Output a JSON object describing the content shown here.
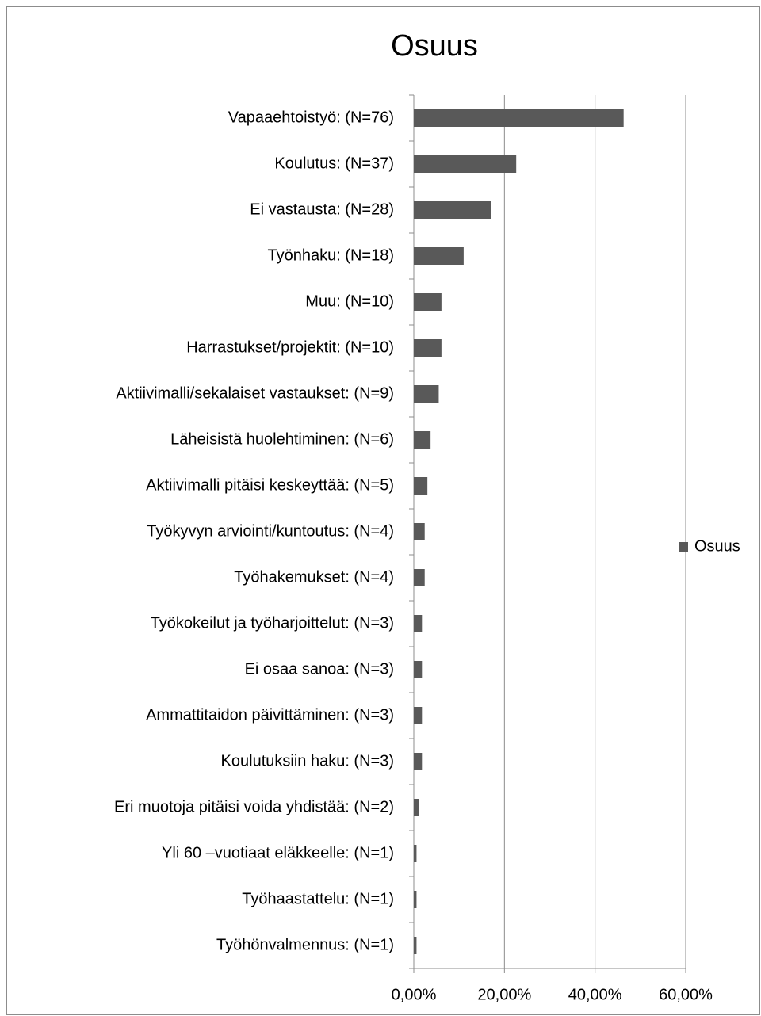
{
  "chart_data": {
    "type": "bar",
    "orientation": "horizontal",
    "title": "Osuus",
    "categories": [
      "Vapaaehtoistyö:  (N=76)",
      "Koulutus: (N=37)",
      "Ei vastausta: (N=28)",
      "Työnhaku: (N=18)",
      "Muu: (N=10)",
      "Harrastukset/projektit: (N=10)",
      "Aktiivimalli/sekalaiset vastaukset: (N=9)",
      "Läheisistä huolehtiminen: (N=6)",
      "Aktiivimalli pitäisi keskeyttää: (N=5)",
      "Työkyvyn arviointi/kuntoutus: (N=4)",
      "Työhakemukset: (N=4)",
      "Työkokeilut ja työharjoittelut: (N=3)",
      "Ei osaa sanoa: (N=3)",
      "Ammattitaidon päivittäminen: (N=3)",
      "Koulutuksiin haku: (N=3)",
      "Eri muotoja pitäisi voida yhdistää: (N=2)",
      "Yli 60 –vuotiaat eläkkeelle: (N=1)",
      "Työhaastattelu: (N=1)",
      "Työhönvalmennus: (N=1)"
    ],
    "series": [
      {
        "name": "Osuus",
        "color": "#595959",
        "values": [
          46.3,
          22.6,
          17.1,
          11.0,
          6.1,
          6.1,
          5.5,
          3.7,
          3.0,
          2.4,
          2.4,
          1.8,
          1.8,
          1.8,
          1.8,
          1.2,
          0.6,
          0.6,
          0.6
        ]
      }
    ],
    "xlim": [
      0,
      60
    ],
    "xticks": [
      {
        "value": 0,
        "label": "0,00%"
      },
      {
        "value": 20,
        "label": "20,00%"
      },
      {
        "value": 40,
        "label": "40,00%"
      },
      {
        "value": 60,
        "label": "60,00%"
      }
    ],
    "grid": true,
    "legend": "right"
  }
}
